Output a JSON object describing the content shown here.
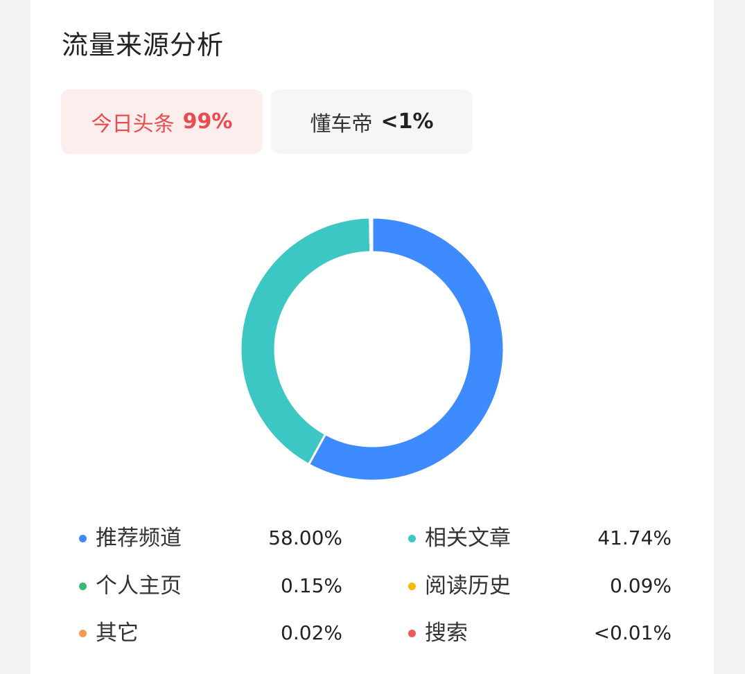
{
  "card": {
    "title": "流量来源分析"
  },
  "tabs": [
    {
      "name": "今日头条",
      "pct": "99%",
      "active": true
    },
    {
      "name": "懂车帝",
      "pct": "<1%",
      "active": false
    }
  ],
  "colors": {
    "blue": "#3d8bff",
    "teal": "#3cc6c4",
    "green": "#3cb878",
    "yellow": "#f8b80d",
    "orange": "#f79a56",
    "red": "#f2595c",
    "active_tab_text": "#ea4b4e",
    "active_tab_bg": "#fdeeee"
  },
  "chart_data": {
    "type": "pie",
    "donut": true,
    "categories": [
      "推荐频道",
      "相关文章",
      "个人主页",
      "阅读历史",
      "其它",
      "搜索"
    ],
    "values": [
      58.0,
      41.74,
      0.15,
      0.09,
      0.02,
      0.01
    ],
    "value_labels": [
      "58.00%",
      "41.74%",
      "0.15%",
      "0.09%",
      "0.02%",
      "<0.01%"
    ],
    "colors": [
      "#3d8bff",
      "#3cc6c4",
      "#3cb878",
      "#f8b80d",
      "#f79a56",
      "#f2595c"
    ],
    "legend_placement": "bottom"
  }
}
